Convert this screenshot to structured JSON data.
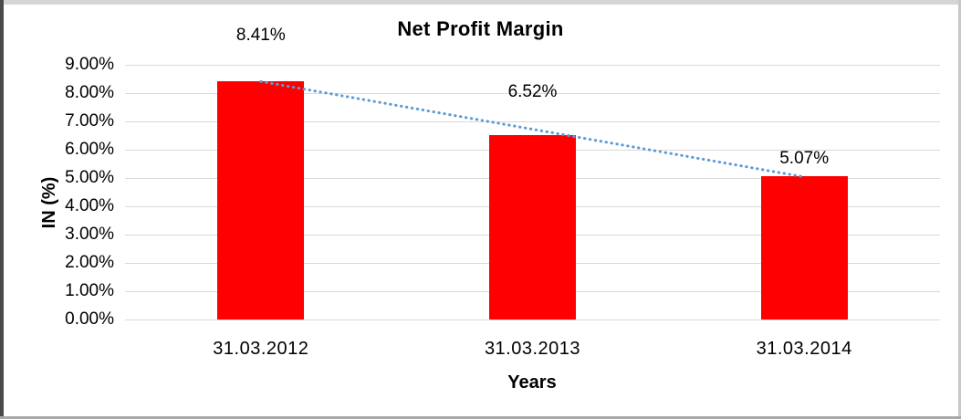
{
  "chart_data": {
    "type": "bar",
    "title": "Net Profit Margin",
    "xlabel": "Years",
    "ylabel": "IN (%)",
    "categories": [
      "31.03.2012",
      "31.03.2013",
      "31.03.2014"
    ],
    "values": [
      8.41,
      6.52,
      5.07
    ],
    "data_labels": [
      "8.41%",
      "6.52%",
      "5.07%"
    ],
    "y_ticks": [
      "9.00%",
      "8.00%",
      "7.00%",
      "6.00%",
      "5.00%",
      "4.00%",
      "3.00%",
      "2.00%",
      "1.00%",
      "0.00%"
    ],
    "ylim": [
      0,
      9
    ],
    "y_tick_step": 1,
    "grid": true,
    "legend_position": "none",
    "bar_color": "#FF0000",
    "trendline": {
      "type": "linear",
      "style": "dotted",
      "color": "#5B9BD5",
      "from_value": 8.41,
      "to_value": 5.07
    }
  }
}
